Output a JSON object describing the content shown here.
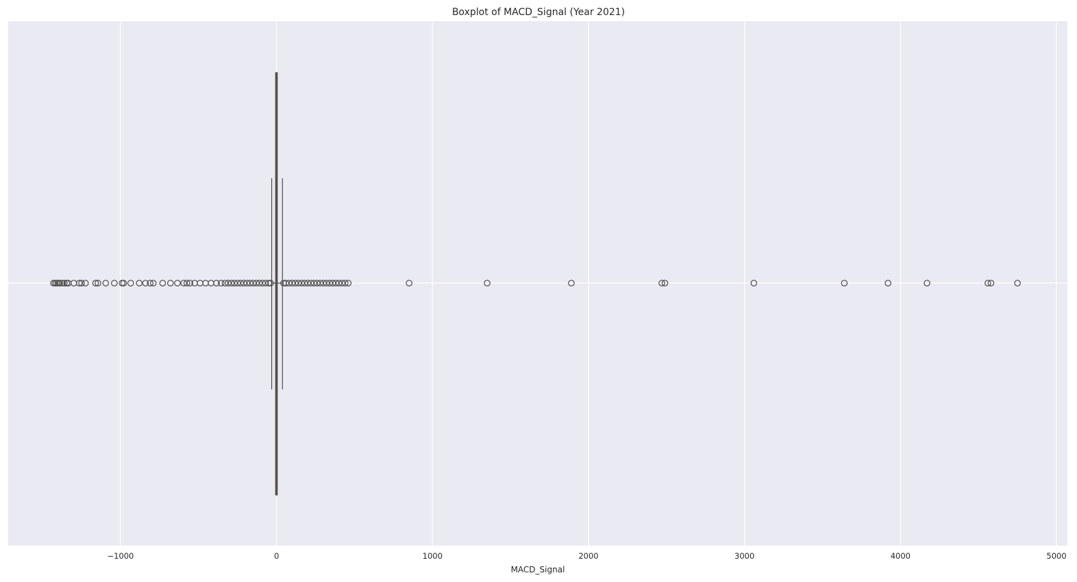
{
  "chart_data": {
    "type": "boxplot",
    "orientation": "horizontal",
    "title": "Boxplot of MACD_Signal (Year 2021)",
    "xlabel": "MACD_Signal",
    "ylabel": "",
    "xlim": [
      -1720,
      5070
    ],
    "xticks": [
      -1000,
      0,
      1000,
      2000,
      3000,
      4000,
      5000
    ],
    "xtick_labels": [
      "−1000",
      "0",
      "1000",
      "2000",
      "3000",
      "4000",
      "5000"
    ],
    "grid": true,
    "box": {
      "q1": -6,
      "median": 0,
      "q3": 5,
      "whisker_low": -31,
      "whisker_high": 38
    },
    "outliers": [
      -1430,
      -1420,
      -1410,
      -1400,
      -1390,
      -1375,
      -1360,
      -1345,
      -1335,
      -1300,
      -1265,
      -1250,
      -1225,
      -1160,
      -1145,
      -1095,
      -1040,
      -990,
      -980,
      -935,
      -880,
      -840,
      -810,
      -790,
      -730,
      -680,
      -635,
      -595,
      -575,
      -555,
      -525,
      -490,
      -455,
      -420,
      -385,
      -355,
      -330,
      -310,
      -290,
      -270,
      -250,
      -230,
      -210,
      -190,
      -170,
      -150,
      -130,
      -110,
      -90,
      -70,
      -50,
      -38,
      45,
      60,
      80,
      100,
      120,
      140,
      160,
      180,
      200,
      220,
      240,
      260,
      280,
      300,
      320,
      340,
      360,
      380,
      400,
      420,
      440,
      460,
      850,
      1350,
      1890,
      2470,
      2490,
      3060,
      3640,
      3920,
      4170,
      4560,
      4580,
      4750
    ],
    "colors": {
      "plot_background": "#EAEAF2",
      "grid": "#FFFFFF",
      "box_fill": "#E6A03C",
      "box_edge": "#4A4A4A",
      "outlier_edge": "#4A4A4A"
    }
  }
}
